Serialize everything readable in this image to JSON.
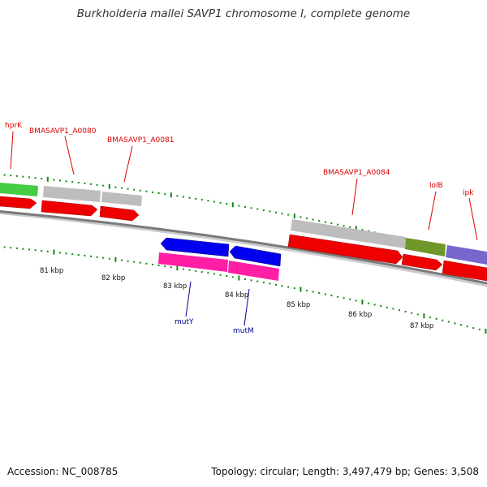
{
  "title": "Burkholderia mallei SAVP1 chromosome I, complete genome",
  "footer": {
    "accession": "Accession: NC_008785",
    "summary": "Topology: circular; Length: 3,497,479 bp; Genes: 3,508"
  },
  "colors": {
    "label_forward": "#dd0000",
    "label_reverse": "#000099",
    "backbone": "#777777",
    "tick": "#118811",
    "cds": "#ee0000"
  },
  "ruler": [
    {
      "label": "81 kbp"
    },
    {
      "label": "82 kbp"
    },
    {
      "label": "83 kbp"
    },
    {
      "label": "84 kbp"
    },
    {
      "label": "85 kbp"
    },
    {
      "label": "86 kbp"
    },
    {
      "label": "87 kbp"
    }
  ],
  "genes": [
    {
      "label": "hprK",
      "strand": "forward",
      "color": "#44cc44"
    },
    {
      "label": "BMASAVP1_A0080",
      "strand": "forward",
      "color": "#bbbbbb"
    },
    {
      "label": "BMASAVP1_A0081",
      "strand": "forward",
      "color": "#bbbbbb"
    },
    {
      "label": "BMASAVP1_A0084",
      "strand": "forward",
      "color": "#bbbbbb"
    },
    {
      "label": "lolB",
      "strand": "forward",
      "color": "#6e9628"
    },
    {
      "label": "ipk",
      "strand": "forward",
      "color": "#7766cc"
    },
    {
      "label": "mutY",
      "strand": "reverse",
      "color": "#0000ee"
    },
    {
      "label": "mutM",
      "strand": "reverse",
      "color": "#0000ee"
    }
  ]
}
